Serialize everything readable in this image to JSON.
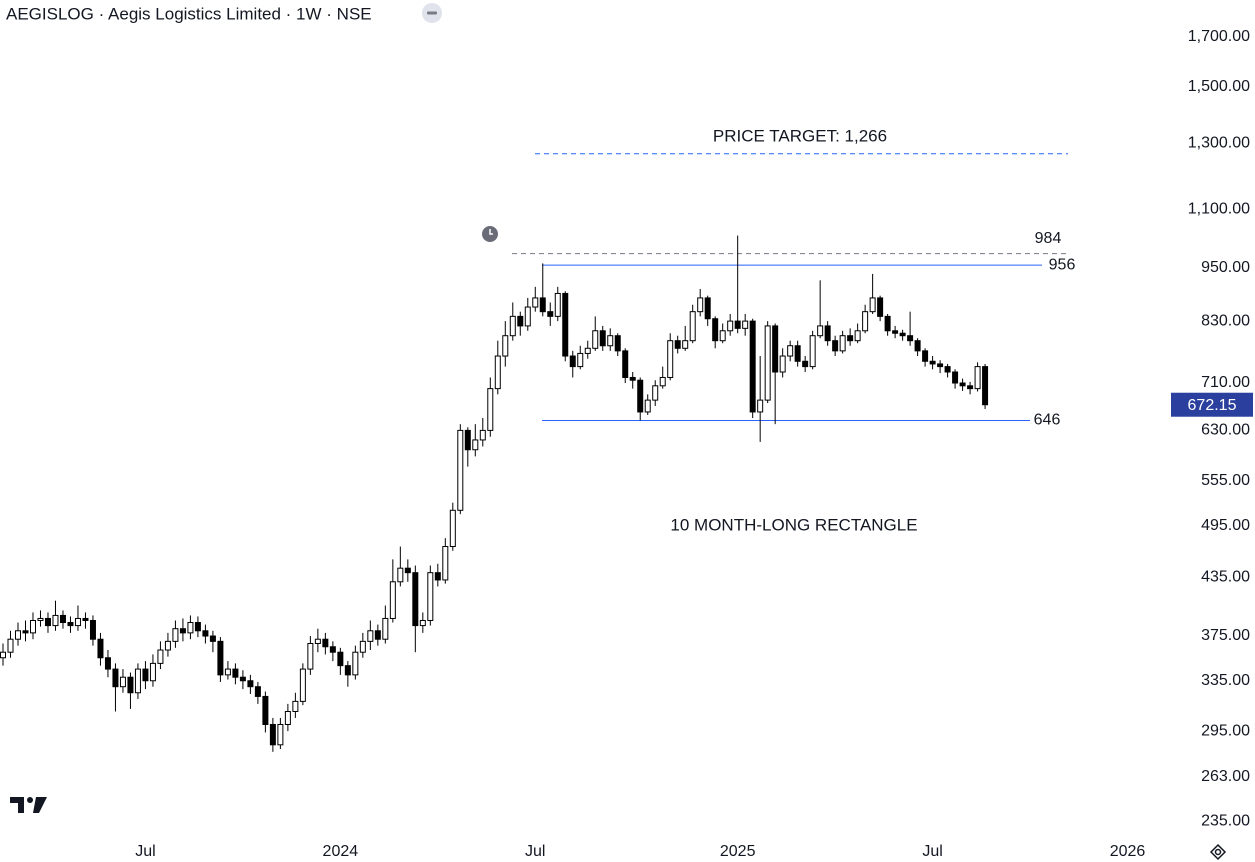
{
  "chart_data": {
    "type": "candlestick",
    "title": "AEGISLOG · Aegis Logistics Limited · 1W · NSE",
    "log_scale": true,
    "up_color": "#ffffff",
    "down_color": "#000000",
    "wick_color": "#000000",
    "xlim": [
      -0.4,
      155
    ],
    "xticks": [
      {
        "value": 19,
        "label": "Jul"
      },
      {
        "value": 45,
        "label": "2024"
      },
      {
        "value": 71,
        "label": "Jul"
      },
      {
        "value": 98,
        "label": "2025"
      },
      {
        "value": 124,
        "label": "Jul"
      },
      {
        "value": 150,
        "label": "2026"
      }
    ],
    "ylim": [
      227,
      1866
    ],
    "yticks": [
      {
        "value": 235,
        "label": "235.00"
      },
      {
        "value": 263,
        "label": "263.00"
      },
      {
        "value": 295,
        "label": "295.00"
      },
      {
        "value": 335,
        "label": "335.00"
      },
      {
        "value": 375,
        "label": "375.00"
      },
      {
        "value": 435,
        "label": "435.00"
      },
      {
        "value": 495,
        "label": "495.00"
      },
      {
        "value": 555,
        "label": "555.00"
      },
      {
        "value": 630,
        "label": "630.00"
      },
      {
        "value": 710,
        "label": "710.00"
      },
      {
        "value": 830,
        "label": "830.00"
      },
      {
        "value": 950,
        "label": "950.00"
      },
      {
        "value": 1100,
        "label": "1,100.00"
      },
      {
        "value": 1300,
        "label": "1,300.00"
      },
      {
        "value": 1500,
        "label": "1,500.00"
      },
      {
        "value": 1700,
        "label": "1,700.00"
      }
    ],
    "open": [
      355,
      360,
      372,
      380,
      378,
      390,
      392,
      385,
      395,
      388,
      385,
      392,
      390,
      372,
      355,
      345,
      330,
      338,
      325,
      345,
      335,
      350,
      362,
      370,
      382,
      378,
      388,
      380,
      375,
      370,
      340,
      345,
      338,
      335,
      330,
      322,
      300,
      285,
      300,
      310,
      318,
      345,
      368,
      372,
      365,
      360,
      348,
      340,
      360,
      370,
      380,
      372,
      392,
      430,
      445,
      440,
      385,
      390,
      440,
      432,
      470,
      515,
      630,
      600,
      615,
      630,
      700,
      760,
      800,
      840,
      820,
      860,
      880,
      850,
      840,
      890,
      760,
      740,
      765,
      775,
      810,
      780,
      800,
      770,
      720,
      715,
      660,
      680,
      705,
      720,
      790,
      775,
      790,
      850,
      880,
      835,
      790,
      810,
      830,
      815,
      830,
      660,
      680,
      820,
      730,
      760,
      780,
      750,
      740,
      800,
      820,
      790,
      770,
      800,
      790,
      810,
      850,
      880,
      840,
      810,
      805,
      800,
      790,
      770,
      750,
      745,
      740,
      730,
      710,
      705,
      700,
      740
    ],
    "high": [
      368,
      380,
      388,
      390,
      398,
      400,
      398,
      410,
      400,
      394,
      405,
      398,
      395,
      378,
      362,
      350,
      345,
      342,
      350,
      352,
      358,
      370,
      378,
      390,
      392,
      395,
      394,
      386,
      380,
      374,
      352,
      350,
      344,
      340,
      334,
      326,
      305,
      305,
      316,
      325,
      350,
      375,
      382,
      378,
      370,
      364,
      352,
      366,
      378,
      390,
      386,
      405,
      455,
      470,
      455,
      448,
      398,
      448,
      450,
      480,
      525,
      640,
      635,
      640,
      650,
      720,
      790,
      830,
      870,
      850,
      880,
      905,
      960,
      870,
      905,
      895,
      770,
      780,
      790,
      840,
      820,
      815,
      805,
      775,
      730,
      720,
      690,
      715,
      740,
      805,
      800,
      820,
      865,
      900,
      885,
      840,
      825,
      845,
      1030,
      845,
      835,
      760,
      830,
      825,
      775,
      790,
      790,
      760,
      810,
      920,
      830,
      800,
      810,
      815,
      825,
      865,
      935,
      885,
      845,
      820,
      812,
      850,
      795,
      775,
      760,
      752,
      745,
      735,
      718,
      712,
      748,
      745
    ],
    "low": [
      348,
      355,
      366,
      370,
      372,
      384,
      378,
      380,
      382,
      378,
      380,
      382,
      366,
      348,
      338,
      310,
      325,
      312,
      320,
      328,
      330,
      345,
      356,
      364,
      370,
      372,
      374,
      368,
      360,
      334,
      336,
      332,
      328,
      324,
      316,
      294,
      280,
      282,
      295,
      305,
      315,
      340,
      360,
      358,
      352,
      340,
      330,
      336,
      355,
      362,
      366,
      368,
      388,
      425,
      430,
      360,
      378,
      385,
      425,
      428,
      465,
      510,
      575,
      590,
      605,
      620,
      690,
      740,
      790,
      800,
      810,
      850,
      840,
      820,
      830,
      750,
      720,
      735,
      755,
      770,
      770,
      770,
      760,
      710,
      700,
      646,
      655,
      670,
      700,
      715,
      765,
      770,
      785,
      840,
      820,
      775,
      785,
      800,
      805,
      800,
      650,
      612,
      675,
      640,
      720,
      750,
      740,
      730,
      735,
      795,
      780,
      760,
      765,
      780,
      785,
      805,
      845,
      830,
      800,
      795,
      790,
      780,
      760,
      740,
      735,
      728,
      720,
      700,
      696,
      690,
      695,
      665
    ],
    "close": [
      360,
      372,
      380,
      378,
      390,
      392,
      385,
      395,
      388,
      385,
      392,
      390,
      372,
      355,
      345,
      330,
      338,
      325,
      345,
      335,
      350,
      362,
      370,
      382,
      378,
      388,
      380,
      375,
      370,
      340,
      345,
      338,
      335,
      330,
      322,
      300,
      285,
      300,
      310,
      318,
      345,
      368,
      372,
      365,
      360,
      348,
      340,
      360,
      370,
      380,
      372,
      392,
      430,
      445,
      440,
      385,
      390,
      440,
      432,
      470,
      515,
      630,
      600,
      615,
      630,
      700,
      760,
      800,
      840,
      820,
      860,
      880,
      850,
      840,
      890,
      760,
      740,
      765,
      775,
      810,
      780,
      800,
      770,
      720,
      715,
      660,
      680,
      705,
      720,
      790,
      775,
      790,
      850,
      880,
      835,
      790,
      810,
      830,
      815,
      830,
      660,
      680,
      820,
      730,
      760,
      780,
      750,
      740,
      800,
      820,
      790,
      770,
      800,
      790,
      810,
      850,
      880,
      840,
      810,
      805,
      800,
      790,
      770,
      750,
      745,
      740,
      730,
      710,
      705,
      700,
      740,
      672.15
    ],
    "last_price_color": "#2a3f9e",
    "levels": [
      {
        "value": 956,
        "label": "956",
        "color": "#2962ff",
        "dashed": false
      },
      {
        "value": 646,
        "label": "646",
        "color": "#2962ff",
        "dashed": false
      },
      {
        "value": 984,
        "label": "984",
        "color": "#787b86",
        "dashed": true
      }
    ],
    "target": {
      "value": 1266,
      "label": "PRICE TARGET: 1,266",
      "color": "#2962ff"
    },
    "pattern_label": "10 MONTH-LONG RECTANGLE"
  }
}
